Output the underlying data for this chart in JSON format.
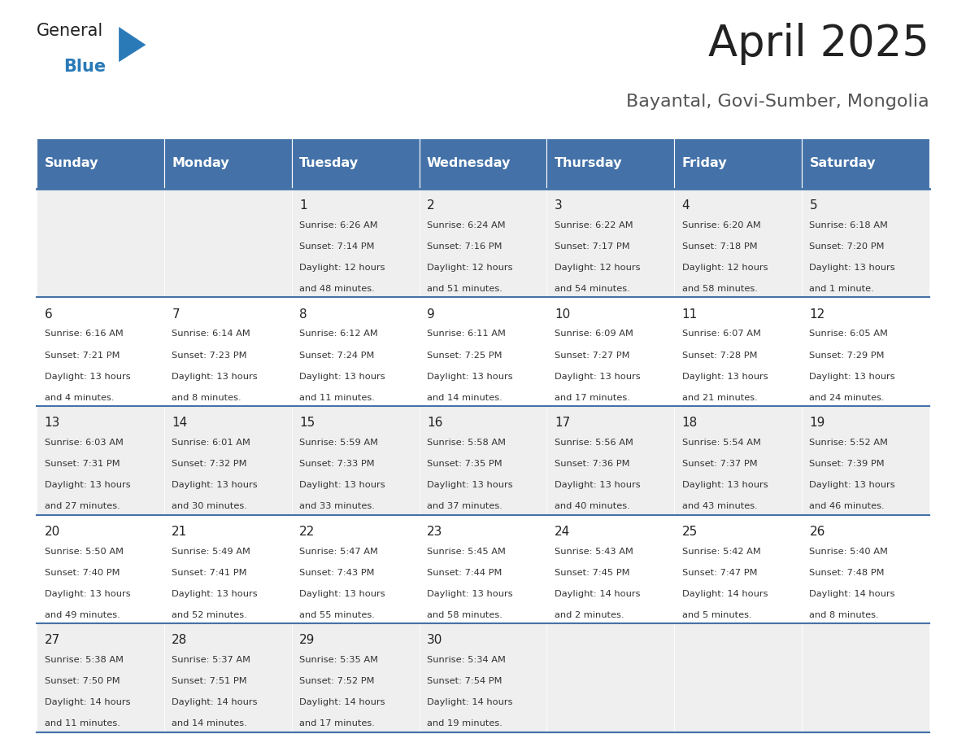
{
  "title": "April 2025",
  "subtitle": "Bayantal, Govi-Sumber, Mongolia",
  "days_of_week": [
    "Sunday",
    "Monday",
    "Tuesday",
    "Wednesday",
    "Thursday",
    "Friday",
    "Saturday"
  ],
  "header_bg": "#4472a8",
  "header_text": "#ffffff",
  "row_bg_odd": "#efefef",
  "row_bg_even": "#ffffff",
  "cell_text_color": "#333333",
  "day_num_color": "#222222",
  "border_color": "#4472a8",
  "title_color": "#222222",
  "subtitle_color": "#555555",
  "logo_general_color": "#222222",
  "logo_blue_color": "#2a7ab8",
  "calendar": [
    [
      {
        "day": null,
        "sunrise": null,
        "sunset": null,
        "daylight": null
      },
      {
        "day": null,
        "sunrise": null,
        "sunset": null,
        "daylight": null
      },
      {
        "day": 1,
        "sunrise": "6:26 AM",
        "sunset": "7:14 PM",
        "daylight": "12 hours\nand 48 minutes."
      },
      {
        "day": 2,
        "sunrise": "6:24 AM",
        "sunset": "7:16 PM",
        "daylight": "12 hours\nand 51 minutes."
      },
      {
        "day": 3,
        "sunrise": "6:22 AM",
        "sunset": "7:17 PM",
        "daylight": "12 hours\nand 54 minutes."
      },
      {
        "day": 4,
        "sunrise": "6:20 AM",
        "sunset": "7:18 PM",
        "daylight": "12 hours\nand 58 minutes."
      },
      {
        "day": 5,
        "sunrise": "6:18 AM",
        "sunset": "7:20 PM",
        "daylight": "13 hours\nand 1 minute."
      }
    ],
    [
      {
        "day": 6,
        "sunrise": "6:16 AM",
        "sunset": "7:21 PM",
        "daylight": "13 hours\nand 4 minutes."
      },
      {
        "day": 7,
        "sunrise": "6:14 AM",
        "sunset": "7:23 PM",
        "daylight": "13 hours\nand 8 minutes."
      },
      {
        "day": 8,
        "sunrise": "6:12 AM",
        "sunset": "7:24 PM",
        "daylight": "13 hours\nand 11 minutes."
      },
      {
        "day": 9,
        "sunrise": "6:11 AM",
        "sunset": "7:25 PM",
        "daylight": "13 hours\nand 14 minutes."
      },
      {
        "day": 10,
        "sunrise": "6:09 AM",
        "sunset": "7:27 PM",
        "daylight": "13 hours\nand 17 minutes."
      },
      {
        "day": 11,
        "sunrise": "6:07 AM",
        "sunset": "7:28 PM",
        "daylight": "13 hours\nand 21 minutes."
      },
      {
        "day": 12,
        "sunrise": "6:05 AM",
        "sunset": "7:29 PM",
        "daylight": "13 hours\nand 24 minutes."
      }
    ],
    [
      {
        "day": 13,
        "sunrise": "6:03 AM",
        "sunset": "7:31 PM",
        "daylight": "13 hours\nand 27 minutes."
      },
      {
        "day": 14,
        "sunrise": "6:01 AM",
        "sunset": "7:32 PM",
        "daylight": "13 hours\nand 30 minutes."
      },
      {
        "day": 15,
        "sunrise": "5:59 AM",
        "sunset": "7:33 PM",
        "daylight": "13 hours\nand 33 minutes."
      },
      {
        "day": 16,
        "sunrise": "5:58 AM",
        "sunset": "7:35 PM",
        "daylight": "13 hours\nand 37 minutes."
      },
      {
        "day": 17,
        "sunrise": "5:56 AM",
        "sunset": "7:36 PM",
        "daylight": "13 hours\nand 40 minutes."
      },
      {
        "day": 18,
        "sunrise": "5:54 AM",
        "sunset": "7:37 PM",
        "daylight": "13 hours\nand 43 minutes."
      },
      {
        "day": 19,
        "sunrise": "5:52 AM",
        "sunset": "7:39 PM",
        "daylight": "13 hours\nand 46 minutes."
      }
    ],
    [
      {
        "day": 20,
        "sunrise": "5:50 AM",
        "sunset": "7:40 PM",
        "daylight": "13 hours\nand 49 minutes."
      },
      {
        "day": 21,
        "sunrise": "5:49 AM",
        "sunset": "7:41 PM",
        "daylight": "13 hours\nand 52 minutes."
      },
      {
        "day": 22,
        "sunrise": "5:47 AM",
        "sunset": "7:43 PM",
        "daylight": "13 hours\nand 55 minutes."
      },
      {
        "day": 23,
        "sunrise": "5:45 AM",
        "sunset": "7:44 PM",
        "daylight": "13 hours\nand 58 minutes."
      },
      {
        "day": 24,
        "sunrise": "5:43 AM",
        "sunset": "7:45 PM",
        "daylight": "14 hours\nand 2 minutes."
      },
      {
        "day": 25,
        "sunrise": "5:42 AM",
        "sunset": "7:47 PM",
        "daylight": "14 hours\nand 5 minutes."
      },
      {
        "day": 26,
        "sunrise": "5:40 AM",
        "sunset": "7:48 PM",
        "daylight": "14 hours\nand 8 minutes."
      }
    ],
    [
      {
        "day": 27,
        "sunrise": "5:38 AM",
        "sunset": "7:50 PM",
        "daylight": "14 hours\nand 11 minutes."
      },
      {
        "day": 28,
        "sunrise": "5:37 AM",
        "sunset": "7:51 PM",
        "daylight": "14 hours\nand 14 minutes."
      },
      {
        "day": 29,
        "sunrise": "5:35 AM",
        "sunset": "7:52 PM",
        "daylight": "14 hours\nand 17 minutes."
      },
      {
        "day": 30,
        "sunrise": "5:34 AM",
        "sunset": "7:54 PM",
        "daylight": "14 hours\nand 19 minutes."
      },
      {
        "day": null,
        "sunrise": null,
        "sunset": null,
        "daylight": null
      },
      {
        "day": null,
        "sunrise": null,
        "sunset": null,
        "daylight": null
      },
      {
        "day": null,
        "sunrise": null,
        "sunset": null,
        "daylight": null
      }
    ]
  ]
}
